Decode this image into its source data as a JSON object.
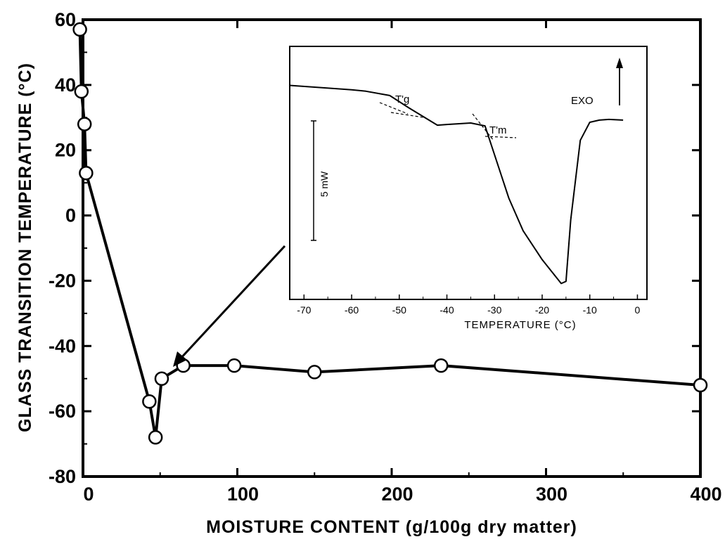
{
  "chart_data": [
    {
      "type": "line",
      "role": "main",
      "xlabel": "MOISTURE CONTENT (g/100g dry matter)",
      "ylabel": "GLASS TRANSITION TEMPERATURE (°C)",
      "xlim": [
        0,
        400
      ],
      "ylim": [
        -80,
        60
      ],
      "xticks": [
        0,
        100,
        200,
        300,
        400
      ],
      "yticks": [
        60,
        40,
        20,
        0,
        -20,
        -40,
        -60,
        -80
      ],
      "x": [
        -2,
        -1,
        1,
        2,
        43,
        47,
        51,
        65,
        98,
        150,
        232,
        400
      ],
      "y": [
        57,
        38,
        28,
        13,
        -57,
        -68,
        -50,
        -46,
        -46,
        -48,
        -46,
        -52
      ],
      "marker": "open-circle",
      "annotation": "arrow from inset to point near x=50"
    },
    {
      "type": "line",
      "role": "inset",
      "xlabel": "TEMPERATURE (°C)",
      "ylabel": "",
      "xlim": [
        -73,
        2
      ],
      "xticks": [
        -70,
        -60,
        -50,
        -40,
        -30,
        -20,
        -10,
        0
      ],
      "ylim": [
        -20,
        15
      ],
      "x": [
        -73,
        -60,
        -57,
        -52,
        -48,
        -42,
        -40,
        -35,
        -32,
        -30,
        -27,
        -24,
        -20,
        -16,
        -15,
        -14,
        -12,
        -10,
        -8,
        -6,
        -3
      ],
      "y": [
        9.6,
        9.0,
        8.8,
        8.2,
        6.5,
        4.1,
        4.2,
        4.4,
        4.0,
        0,
        -6,
        -10.5,
        -14.5,
        -17.8,
        -17.5,
        -9,
        2,
        4.5,
        4.8,
        4.9,
        4.8
      ],
      "annotations": [
        "T'g",
        "T'm",
        "EXO",
        "5 mW"
      ],
      "scale_bar": {
        "label": "5 mW",
        "value": 5
      }
    }
  ]
}
